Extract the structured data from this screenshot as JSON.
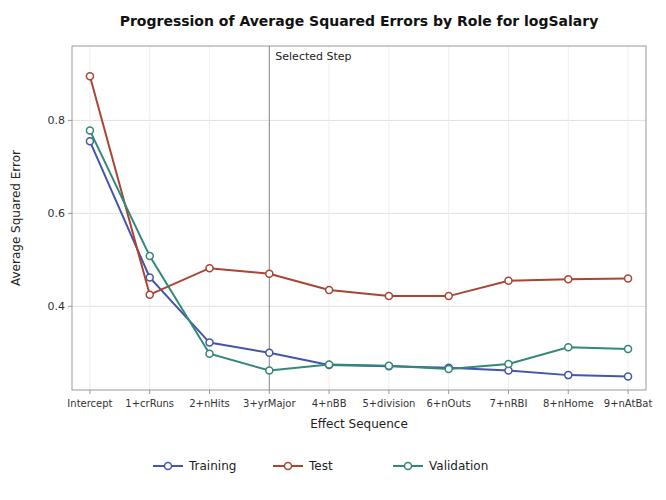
{
  "chart_data": {
    "type": "line",
    "title": "Progression of Average Squared Errors by Role for logSalary",
    "x_label": "Effect Sequence",
    "y_label": "Average Squared Error",
    "categories": [
      "Intercept",
      "1+crRuns",
      "2+nHits",
      "3+yrMajor",
      "4+nBB",
      "5+division",
      "6+nOuts",
      "7+nRBI",
      "8+nHome",
      "9+nAtBat"
    ],
    "series": [
      {
        "name": "Training",
        "color": "#4455aa",
        "values": [
          0.755,
          0.462,
          0.322,
          0.3,
          0.274,
          0.271,
          0.268,
          0.262,
          0.252,
          0.249
        ]
      },
      {
        "name": "Test",
        "color": "#aa4433",
        "values": [
          0.895,
          0.425,
          0.482,
          0.47,
          0.435,
          0.422,
          0.422,
          0.455,
          0.458,
          0.46
        ]
      },
      {
        "name": "Validation",
        "color": "#338877",
        "values": [
          0.778,
          0.508,
          0.298,
          0.262,
          0.275,
          0.272,
          0.265,
          0.276,
          0.312,
          0.308
        ]
      }
    ],
    "annotations": [
      {
        "text": "Selected Step",
        "category": "3+yrMajor"
      }
    ],
    "ylim": [
      0.22,
      0.96
    ],
    "yticks": [
      0.4,
      0.6,
      0.8
    ],
    "grid": true,
    "legend": "bottom",
    "marker": "circle"
  }
}
